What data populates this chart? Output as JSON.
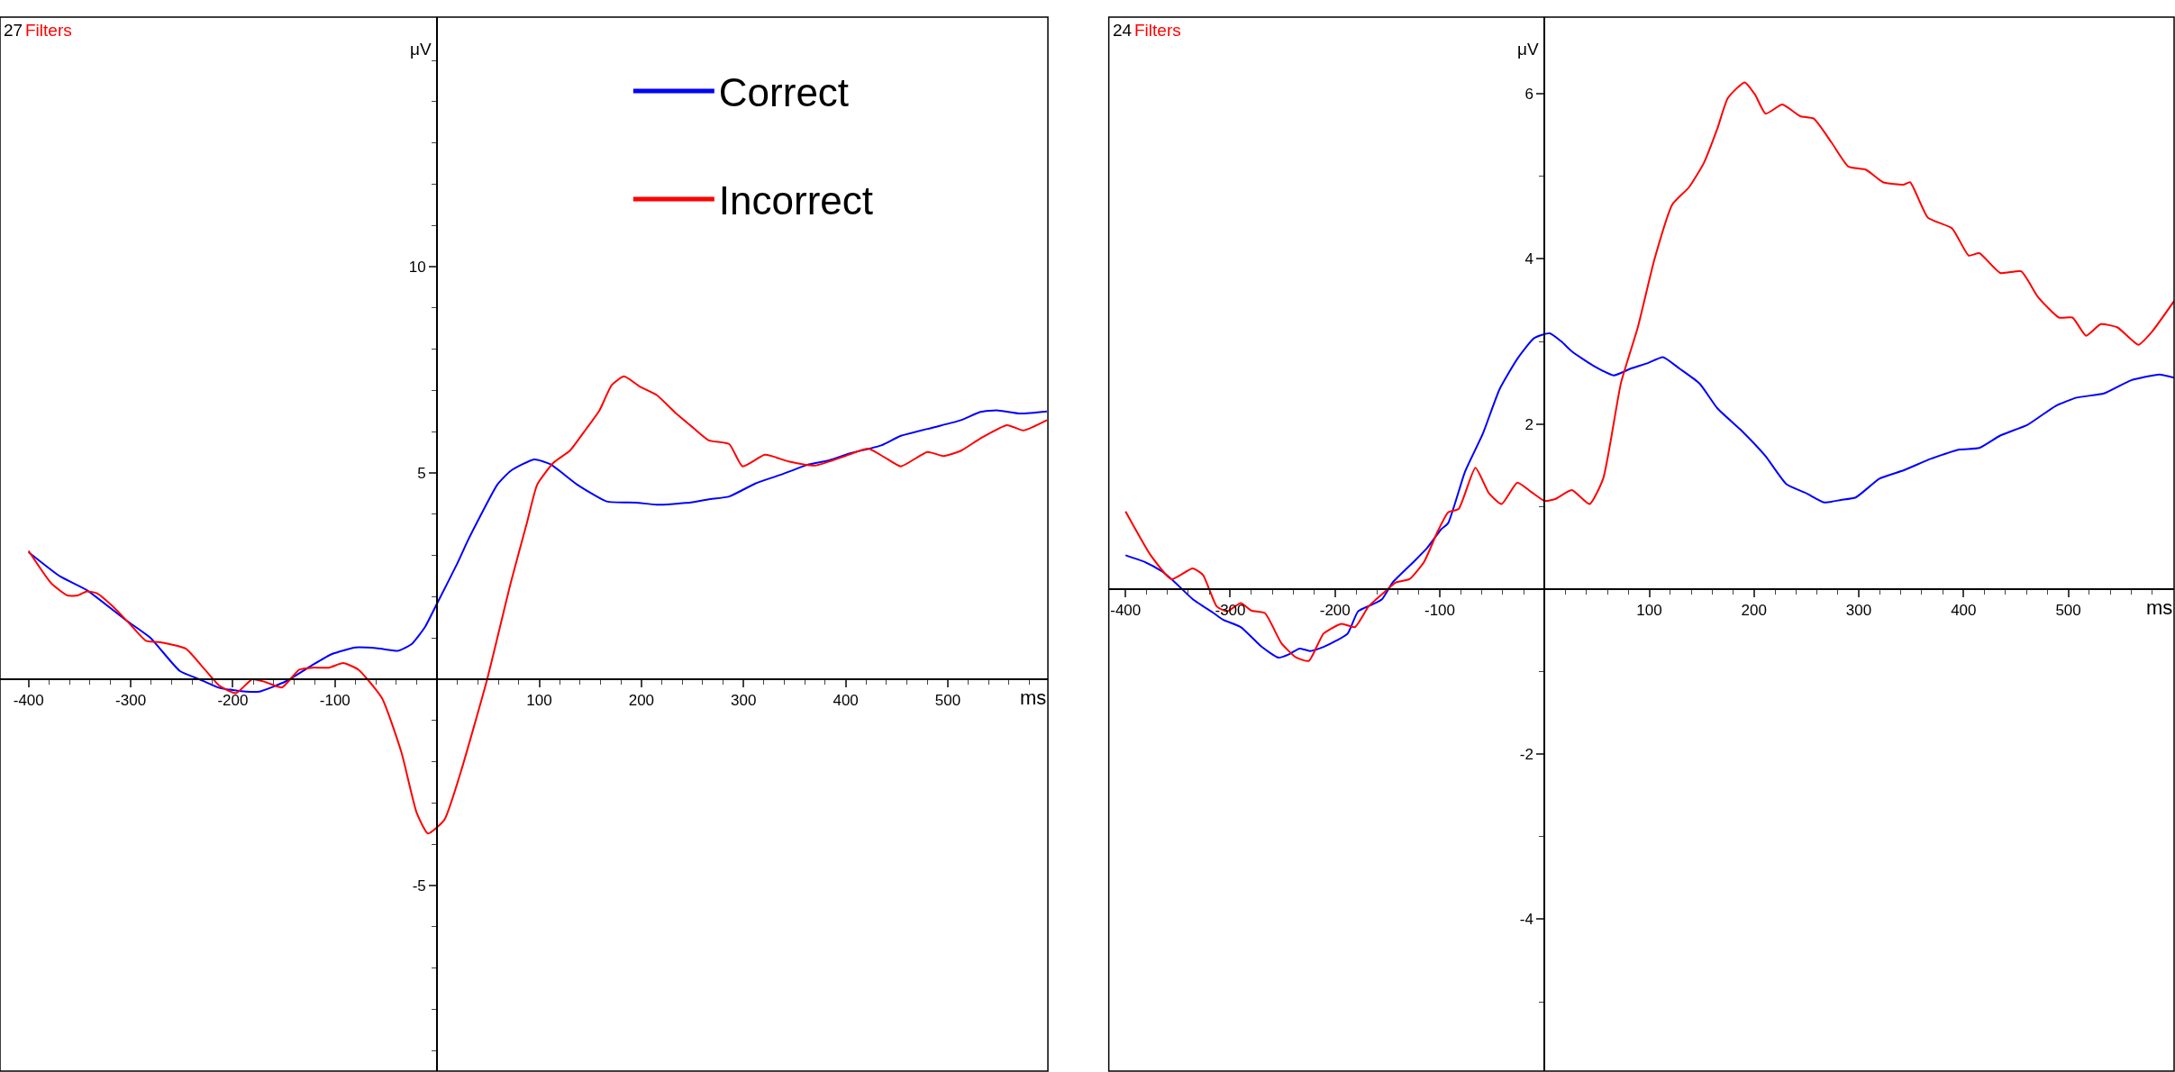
{
  "chart_data": [
    {
      "type": "line",
      "xlabel": "ms",
      "ylabel": "μV",
      "annotations": [
        "27",
        "Filters"
      ],
      "legend": "top right",
      "marker": "none",
      "line_style": "solid",
      "xlim": [
        -428,
        598
      ],
      "ylim": [
        -9.5,
        16.05
      ],
      "xticks": [
        -400,
        {
          "value": -380,
          "label": null
        },
        {
          "value": -360,
          "label": null
        },
        {
          "value": -340,
          "label": null
        },
        {
          "value": -320,
          "label": null
        },
        -300,
        {
          "value": -280,
          "label": null
        },
        {
          "value": -260,
          "label": null
        },
        {
          "value": -240,
          "label": null
        },
        {
          "value": -220,
          "label": null
        },
        -200,
        {
          "value": -180,
          "label": null
        },
        {
          "value": -160,
          "label": null
        },
        {
          "value": -140,
          "label": null
        },
        {
          "value": -120,
          "label": null
        },
        -100,
        {
          "value": -80,
          "label": null
        },
        {
          "value": -60,
          "label": null
        },
        {
          "value": -40,
          "label": null
        },
        {
          "value": -20,
          "label": null
        },
        {
          "value": 20,
          "label": null
        },
        {
          "value": 40,
          "label": null
        },
        {
          "value": 60,
          "label": null
        },
        {
          "value": 80,
          "label": null
        },
        100,
        {
          "value": 120,
          "label": null
        },
        {
          "value": 140,
          "label": null
        },
        {
          "value": 160,
          "label": null
        },
        {
          "value": 180,
          "label": null
        },
        200,
        {
          "value": 220,
          "label": null
        },
        {
          "value": 240,
          "label": null
        },
        {
          "value": 260,
          "label": null
        },
        {
          "value": 280,
          "label": null
        },
        300,
        {
          "value": 320,
          "label": null
        },
        {
          "value": 340,
          "label": null
        },
        {
          "value": 360,
          "label": null
        },
        {
          "value": 380,
          "label": null
        },
        400,
        {
          "value": 420,
          "label": null
        },
        {
          "value": 440,
          "label": null
        },
        {
          "value": 460,
          "label": null
        },
        {
          "value": 480,
          "label": null
        },
        500,
        {
          "value": 520,
          "label": null
        },
        {
          "value": 540,
          "label": null
        },
        {
          "value": 560,
          "label": null
        },
        {
          "value": 580,
          "label": null
        }
      ],
      "yticks": [
        {
          "value": -9,
          "label": null
        },
        {
          "value": -8,
          "label": null
        },
        {
          "value": -7,
          "label": null
        },
        {
          "value": -6,
          "label": null
        },
        -5,
        {
          "value": -4,
          "label": null
        },
        {
          "value": -3,
          "label": null
        },
        {
          "value": -2,
          "label": null
        },
        {
          "value": -1,
          "label": null
        },
        {
          "value": 1,
          "label": null
        },
        {
          "value": 2,
          "label": null
        },
        {
          "value": 3,
          "label": null
        },
        {
          "value": 4,
          "label": null
        },
        5,
        {
          "value": 6,
          "label": null
        },
        {
          "value": 7,
          "label": null
        },
        {
          "value": 8,
          "label": null
        },
        {
          "value": 9,
          "label": null
        },
        10,
        {
          "value": 11,
          "label": null
        },
        {
          "value": 12,
          "label": null
        },
        {
          "value": 13,
          "label": null
        },
        {
          "value": 14,
          "label": null
        },
        {
          "value": 15,
          "label": null
        }
      ],
      "series": [
        {
          "name": "Correct",
          "color": "#0000ff",
          "x": [
            -400,
            -369,
            -343,
            -304,
            -281,
            -252,
            -233,
            -213,
            -187,
            -174,
            -148,
            -123,
            -103,
            -80,
            -58,
            -38,
            -25,
            -12,
            0,
            20,
            30,
            39,
            59,
            72,
            95,
            111,
            137,
            166,
            195,
            215,
            247,
            266,
            286,
            312,
            338,
            364,
            383,
            402,
            435,
            454,
            487,
            513,
            532,
            548,
            571,
            597
          ],
          "values": [
            3.08,
            2.49,
            2.16,
            1.42,
            1.01,
            0.2,
            0,
            -0.21,
            -0.3,
            -0.3,
            -0.05,
            0.33,
            0.61,
            0.77,
            0.75,
            0.69,
            0.85,
            1.26,
            1.84,
            2.82,
            3.36,
            3.8,
            4.72,
            5.05,
            5.33,
            5.21,
            4.72,
            4.31,
            4.28,
            4.23,
            4.28,
            4.36,
            4.43,
            4.75,
            4.97,
            5.21,
            5.3,
            5.46,
            5.67,
            5.9,
            6.11,
            6.28,
            6.48,
            6.52,
            6.44,
            6.49
          ]
        },
        {
          "name": "Incorrect",
          "color": "#ff0000",
          "x": [
            -400,
            -378,
            -362,
            -352,
            -343,
            -333,
            -317,
            -301,
            -285,
            -272,
            -246,
            -229,
            -213,
            -197,
            -181,
            -168,
            -152,
            -135,
            -122,
            -106,
            -92,
            -77,
            -54,
            -35,
            -20,
            -9,
            7,
            23,
            49,
            72,
            88,
            98,
            114,
            130,
            146,
            159,
            171,
            183,
            198,
            215,
            234,
            250,
            266,
            286,
            299,
            321,
            344,
            370,
            396,
            422,
            438,
            454,
            480,
            496,
            513,
            532,
            558,
            574,
            597
          ],
          "values": [
            3.11,
            2.33,
            2.03,
            2.03,
            2.13,
            2.08,
            1.75,
            1.34,
            0.93,
            0.9,
            0.74,
            0.28,
            -0.16,
            -0.34,
            0,
            -0.07,
            -0.2,
            0.23,
            0.28,
            0.28,
            0.39,
            0.23,
            -0.46,
            -1.77,
            -3.24,
            -3.74,
            -3.41,
            -2.26,
            0,
            2.33,
            3.8,
            4.72,
            5.25,
            5.54,
            6.07,
            6.52,
            7.13,
            7.34,
            7.1,
            6.89,
            6.44,
            6.11,
            5.79,
            5.7,
            5.16,
            5.44,
            5.28,
            5.18,
            5.38,
            5.59,
            5.38,
            5.16,
            5.51,
            5.41,
            5.54,
            5.84,
            6.16,
            6.03,
            6.28
          ]
        }
      ]
    },
    {
      "type": "line",
      "xlabel": "ms",
      "ylabel": "μV",
      "annotations": [
        "24",
        "Filters"
      ],
      "marker": "none",
      "line_style": "solid",
      "xlim": [
        -416,
        601
      ],
      "ylim": [
        -5.84,
        6.93
      ],
      "xticks": [
        -400,
        {
          "value": -380,
          "label": null
        },
        {
          "value": -360,
          "label": null
        },
        {
          "value": -340,
          "label": null
        },
        {
          "value": -320,
          "label": null
        },
        -300,
        {
          "value": -280,
          "label": null
        },
        {
          "value": -260,
          "label": null
        },
        {
          "value": -240,
          "label": null
        },
        {
          "value": -220,
          "label": null
        },
        -200,
        {
          "value": -180,
          "label": null
        },
        {
          "value": -160,
          "label": null
        },
        {
          "value": -140,
          "label": null
        },
        {
          "value": -120,
          "label": null
        },
        -100,
        {
          "value": -80,
          "label": null
        },
        {
          "value": -60,
          "label": null
        },
        {
          "value": -40,
          "label": null
        },
        {
          "value": -20,
          "label": null
        },
        {
          "value": 20,
          "label": null
        },
        {
          "value": 40,
          "label": null
        },
        {
          "value": 60,
          "label": null
        },
        {
          "value": 80,
          "label": null
        },
        100,
        {
          "value": 120,
          "label": null
        },
        {
          "value": 140,
          "label": null
        },
        {
          "value": 160,
          "label": null
        },
        {
          "value": 180,
          "label": null
        },
        200,
        {
          "value": 220,
          "label": null
        },
        {
          "value": 240,
          "label": null
        },
        {
          "value": 260,
          "label": null
        },
        {
          "value": 280,
          "label": null
        },
        300,
        {
          "value": 320,
          "label": null
        },
        {
          "value": 340,
          "label": null
        },
        {
          "value": 360,
          "label": null
        },
        {
          "value": 380,
          "label": null
        },
        400,
        {
          "value": 420,
          "label": null
        },
        {
          "value": 440,
          "label": null
        },
        {
          "value": 460,
          "label": null
        },
        {
          "value": 480,
          "label": null
        },
        500,
        {
          "value": 520,
          "label": null
        },
        {
          "value": 540,
          "label": null
        },
        {
          "value": 560,
          "label": null
        },
        {
          "value": 580,
          "label": null
        }
      ],
      "yticks": [
        {
          "value": -5,
          "label": null
        },
        -4,
        {
          "value": -3,
          "label": null
        },
        -2,
        {
          "value": -1,
          "label": null
        },
        {
          "value": 1,
          "label": null
        },
        2,
        {
          "value": 3,
          "label": null
        },
        4,
        {
          "value": 5,
          "label": null
        },
        6
      ],
      "series": [
        {
          "color": "#0000ff",
          "x": [
            -400,
            -382,
            -366,
            -356,
            -336,
            -316,
            -307,
            -290,
            -270,
            -254,
            -244,
            -234,
            -224,
            -211,
            -198,
            -188,
            -178,
            -165,
            -155,
            -145,
            -125,
            -112,
            -99,
            -92,
            -76,
            -59,
            -43,
            -26,
            -10,
            5,
            16,
            26,
            46,
            66,
            82,
            99,
            113,
            129,
            148,
            165,
            188,
            211,
            231,
            250,
            267,
            283,
            297,
            320,
            343,
            369,
            396,
            415,
            435,
            461,
            488,
            508,
            534,
            560,
            587,
            601
          ],
          "values": [
            0.41,
            0.33,
            0.22,
            0.12,
            -0.12,
            -0.29,
            -0.37,
            -0.46,
            -0.7,
            -0.83,
            -0.79,
            -0.72,
            -0.75,
            -0.7,
            -0.62,
            -0.54,
            -0.27,
            -0.19,
            -0.12,
            0.08,
            0.33,
            0.5,
            0.72,
            0.8,
            1.42,
            1.88,
            2.42,
            2.79,
            3.04,
            3.1,
            3.0,
            2.88,
            2.71,
            2.59,
            2.67,
            2.74,
            2.81,
            2.67,
            2.49,
            2.19,
            1.92,
            1.61,
            1.27,
            1.16,
            1.05,
            1.08,
            1.11,
            1.34,
            1.44,
            1.58,
            1.69,
            1.71,
            1.86,
            1.99,
            2.22,
            2.32,
            2.37,
            2.53,
            2.6,
            2.56
          ]
        },
        {
          "color": "#ff0000",
          "x": [
            -400,
            -376,
            -356,
            -336,
            -326,
            -313,
            -303,
            -290,
            -280,
            -267,
            -251,
            -237,
            -225,
            -211,
            -194,
            -181,
            -168,
            -155,
            -142,
            -129,
            -115,
            -102,
            -92,
            -82,
            -66,
            -53,
            -41,
            -26,
            -13,
            0,
            10,
            26,
            43,
            56,
            73,
            89,
            105,
            122,
            138,
            152,
            165,
            175,
            191,
            201,
            211,
            227,
            244,
            257,
            274,
            290,
            307,
            323,
            343,
            349,
            366,
            389,
            405,
            415,
            435,
            455,
            471,
            491,
            504,
            517,
            531,
            547,
            567,
            580,
            601
          ],
          "values": [
            0.94,
            0.41,
            0.12,
            0.25,
            0.17,
            -0.21,
            -0.27,
            -0.17,
            -0.26,
            -0.29,
            -0.66,
            -0.83,
            -0.87,
            -0.54,
            -0.42,
            -0.46,
            -0.21,
            -0.06,
            0.08,
            0.12,
            0.33,
            0.7,
            0.93,
            0.97,
            1.47,
            1.16,
            1.03,
            1.29,
            1.18,
            1.07,
            1.09,
            1.2,
            1.03,
            1.34,
            2.5,
            3.17,
            4.0,
            4.66,
            4.87,
            5.16,
            5.58,
            5.95,
            6.14,
            5.99,
            5.76,
            5.87,
            5.73,
            5.7,
            5.41,
            5.12,
            5.08,
            4.93,
            4.9,
            4.93,
            4.5,
            4.37,
            4.04,
            4.07,
            3.83,
            3.85,
            3.54,
            3.29,
            3.29,
            3.07,
            3.21,
            3.17,
            2.96,
            3.12,
            3.49
          ]
        }
      ]
    }
  ]
}
